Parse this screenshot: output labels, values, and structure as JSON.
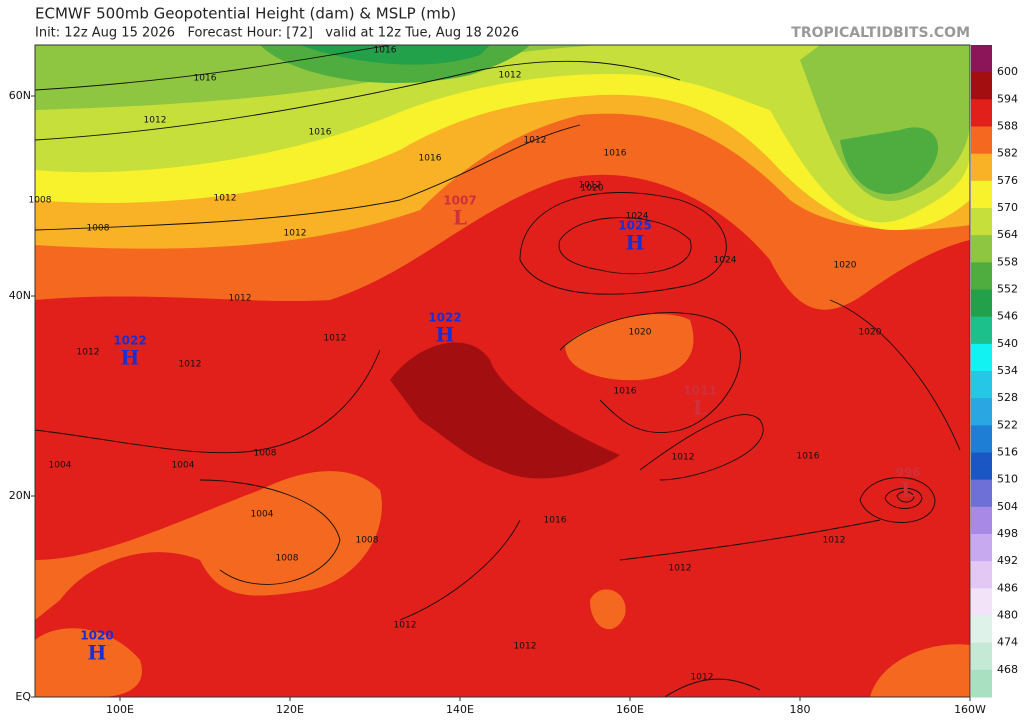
{
  "header": {
    "title": "ECMWF 500mb Geopotential Height (dam) & MSLP (mb)",
    "subtitle": "Init: 12z Aug 15 2026   Forecast Hour: [72]   valid at 12z Tue, Aug 18 2026",
    "credit": "TROPICALTIDBITS.COM"
  },
  "axes": {
    "lat_labels": [
      "60N",
      "40N",
      "20N",
      "EQ"
    ],
    "lon_labels": [
      "100E",
      "120E",
      "140E",
      "160E",
      "180",
      "160W"
    ]
  },
  "colorbar": {
    "levels": [
      600,
      594,
      588,
      582,
      576,
      570,
      564,
      558,
      552,
      546,
      540,
      534,
      528,
      522,
      516,
      510,
      504,
      498,
      492,
      486,
      480,
      474,
      468
    ],
    "colors": [
      "#8c1458",
      "#a30f10",
      "#e11f1b",
      "#f4691f",
      "#f9b125",
      "#f8f22c",
      "#c6df3a",
      "#8ec641",
      "#4fad3f",
      "#22a04a",
      "#1cc08a",
      "#12f2f2",
      "#26c6e6",
      "#2aa6e2",
      "#1e7ed6",
      "#1a56c4",
      "#6f6fd8",
      "#a88ae6",
      "#c7a9ef",
      "#e3c8f4",
      "#f3e3f8",
      "#dff2ea",
      "#c4ead6",
      "#a9e0c2"
    ]
  },
  "centers": [
    {
      "letter": "H",
      "pressure": "1025"
    },
    {
      "letter": "H",
      "pressure": "1022"
    },
    {
      "letter": "H",
      "pressure": "1022"
    },
    {
      "letter": "H",
      "pressure": "1020"
    },
    {
      "letter": "L",
      "pressure": "1007"
    },
    {
      "letter": "L",
      "pressure": "1011"
    },
    {
      "letter": "L",
      "pressure": "996"
    }
  ],
  "contour_labels": [
    1016,
    1016,
    1012,
    1012,
    1016,
    1016,
    1012,
    1012,
    1008,
    1008,
    1012,
    1012,
    1016,
    1020,
    1024,
    1024,
    1020,
    1020,
    1020,
    1016,
    1016,
    1012,
    1016,
    1012,
    1012,
    1008,
    1004,
    1004,
    1008,
    1008,
    1004,
    1012,
    1012,
    1012,
    1012,
    1012,
    1012,
    1012
  ]
}
